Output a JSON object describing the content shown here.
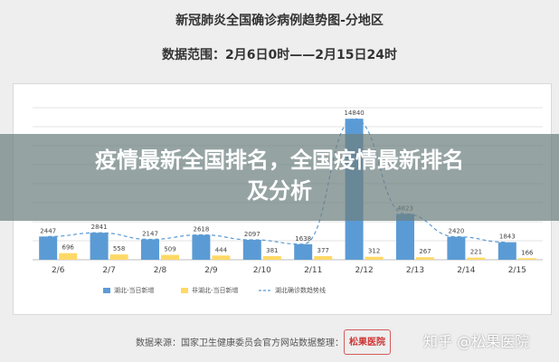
{
  "header": {
    "title": "新冠肺炎全国确诊病例趋势图-分地区",
    "range": "数据范围：2月6日0时——2月15日24时"
  },
  "overlay": {
    "line1": "疫情最新全国排名，全国疫情最新排名",
    "line2": "及分析"
  },
  "footer": {
    "source": "数据来源：国家卫生健康委员会官方网站",
    "curator": "数据整理：",
    "logo": "松果医院",
    "watermark": "知乎 @松果医院"
  },
  "colors": {
    "hubei": "#5b9bd5",
    "non_hubei": "#ffd966",
    "trend": "#5b9bd5"
  },
  "chart_data": {
    "type": "bar",
    "categories": [
      "2/6",
      "2/7",
      "2/8",
      "2/9",
      "2/10",
      "2/11",
      "2/12",
      "2/13",
      "2/14",
      "2/15"
    ],
    "series": [
      {
        "name": "湖北-当日新增",
        "values": [
          2447,
          2841,
          2147,
          2618,
          2097,
          1638,
          14840,
          4823,
          2420,
          1843
        ]
      },
      {
        "name": "非湖北-当日新增",
        "values": [
          696,
          558,
          509,
          444,
          381,
          377,
          312,
          267,
          221,
          166
        ]
      }
    ],
    "trend_line": {
      "name": "湖北确诊数趋势线",
      "style": "dashed"
    },
    "ylim": [
      0,
      16000
    ],
    "grid": true,
    "legend": "bottom",
    "title": "",
    "xlabel": "",
    "ylabel": ""
  }
}
